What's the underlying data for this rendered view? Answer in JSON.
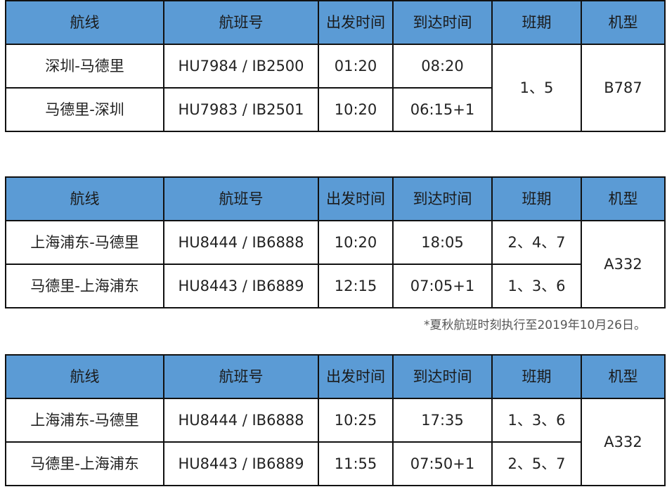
{
  "headers": [
    "航线",
    "航班号",
    "出发时间",
    "到达时间",
    "班期",
    "机型"
  ],
  "tables": [
    {
      "rows": [
        {
          "route": "深圳-马德里",
          "flight": "HU7984 / IB2500",
          "dep": "01:20",
          "arr": "08:20"
        },
        {
          "route": "马德里-深圳",
          "flight": "HU7983 / IB2501",
          "dep": "10:20",
          "arr": "06:15+1"
        }
      ],
      "days": [
        "1、5"
      ],
      "aircraft": "B787"
    },
    {
      "rows": [
        {
          "route": "上海浦东-马德里",
          "flight": "HU8444 / IB6888",
          "dep": "10:20",
          "arr": "18:05",
          "days": "2、4、7"
        },
        {
          "route": "马德里-上海浦东",
          "flight": "HU8443 / IB6889",
          "dep": "12:15",
          "arr": "07:05+1",
          "days": "1、3、6"
        }
      ],
      "aircraft": "A332"
    },
    {
      "rows": [
        {
          "route": "上海浦东-马德里",
          "flight": "HU8444 / IB6888",
          "dep": "10:25",
          "arr": "17:35",
          "days": "1、3、6"
        },
        {
          "route": "马德里-上海浦东",
          "flight": "HU8443 / IB6889",
          "dep": "11:55",
          "arr": "07:50+1",
          "days": "2、5、7"
        }
      ],
      "aircraft": "A332"
    }
  ],
  "note": "*夏秋航班时刻执行至2019年10月26日。",
  "colors": {
    "header_bg": "#5b9bd5"
  }
}
